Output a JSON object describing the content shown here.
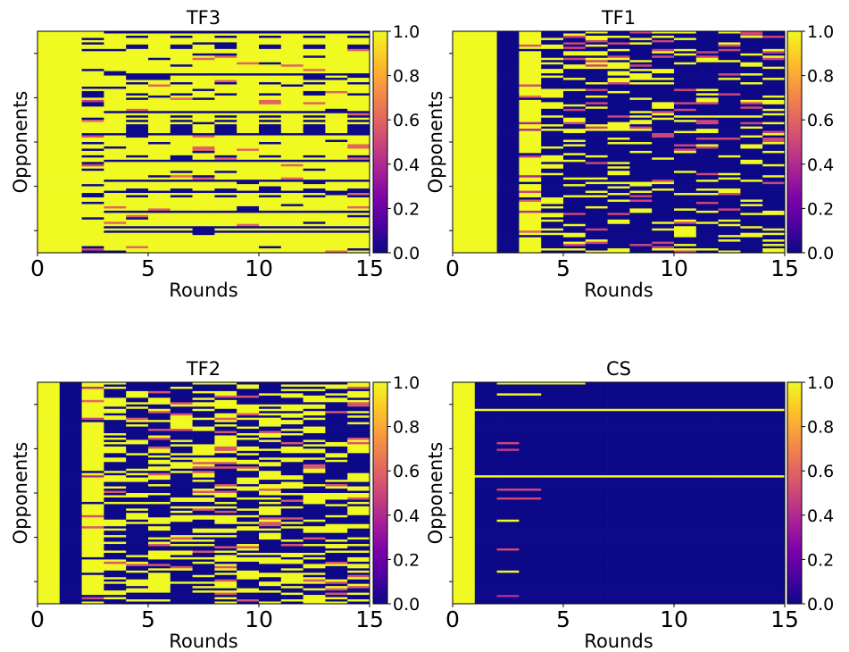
{
  "chart_data": [
    {
      "type": "heatmap",
      "title": "TF3",
      "xlabel": "Rounds",
      "ylabel": "Opponents",
      "x_ticks": [
        "0",
        "5",
        "10",
        "15"
      ],
      "xlim": [
        0,
        15
      ],
      "colorbar": {
        "ticks": [
          "0.0",
          "0.2",
          "0.4",
          "0.6",
          "0.8",
          "1.0"
        ],
        "range": [
          0.0,
          1.0
        ],
        "colormap": "plasma"
      },
      "rows": 100,
      "description_values": "rounds 0-1 all 1.0; round 2 mostly 1.0 with scattered low values; rounds 3-15 mostly 1.0 with recurring 0.0 rows (alternating in some rows)"
    },
    {
      "type": "heatmap",
      "title": "TF1",
      "xlabel": "Rounds",
      "ylabel": "Opponents",
      "x_ticks": [
        "0",
        "5",
        "10",
        "15"
      ],
      "xlim": [
        0,
        15
      ],
      "colorbar": {
        "ticks": [
          "0.0",
          "0.2",
          "0.4",
          "0.6",
          "0.8",
          "1.0"
        ],
        "range": [
          0.0,
          1.0
        ],
        "colormap": "plasma"
      },
      "rows": 100,
      "description_values": "rounds 0-1 all 1.0; round 2 all 0.0; rounds 3-4 mostly 1.0; round 5 mostly 0.0; rounds 6-15 sparse 1.0 bands"
    },
    {
      "type": "heatmap",
      "title": "TF2",
      "xlabel": "Rounds",
      "ylabel": "Opponents",
      "x_ticks": [
        "0",
        "5",
        "10",
        "15"
      ],
      "xlim": [
        0,
        15
      ],
      "colorbar": {
        "ticks": [
          "0.0",
          "0.2",
          "0.4",
          "0.6",
          "0.8",
          "1.0"
        ],
        "range": [
          0.0,
          1.0
        ],
        "colormap": "plasma"
      },
      "rows": 100,
      "description_values": "round 0 all 1.0; round 1 all 0.0; round 2 mostly 1.0; rounds 3-15 mixed 1.0 / 0.0 bands"
    },
    {
      "type": "heatmap",
      "title": "CS",
      "xlabel": "Rounds",
      "ylabel": "Opponents",
      "x_ticks": [
        "0",
        "5",
        "10",
        "15"
      ],
      "xlim": [
        0,
        15
      ],
      "colorbar": {
        "ticks": [
          "0.0",
          "0.2",
          "0.4",
          "0.6",
          "0.8",
          "1.0"
        ],
        "range": [
          0.0,
          1.0
        ],
        "colormap": "plasma"
      },
      "rows": 100,
      "description_values": "round 0 all 1.0; rounds 1-15 almost all 0.0 with two full-width 1.0 rows and a few short 1.0 segments near rounds 2-6"
    }
  ]
}
